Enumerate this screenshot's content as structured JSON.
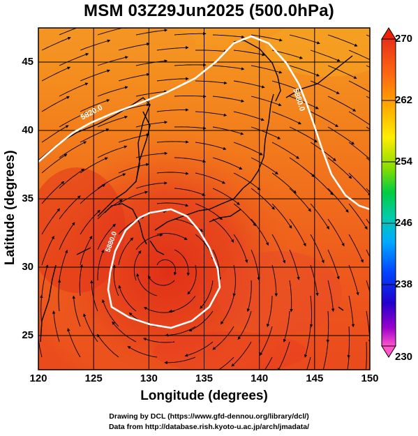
{
  "title": "MSM 03Z29Jun2025 (500.0hPa)",
  "axes": {
    "xlabel": "Longitude (degrees)",
    "ylabel": "Latitude  (degrees)",
    "xticks": [
      "120",
      "125",
      "130",
      "135",
      "140",
      "145",
      "150"
    ],
    "yticks": [
      "25",
      "30",
      "35",
      "40",
      "45"
    ],
    "xlim": [
      120,
      150
    ],
    "ylim": [
      22.5,
      47.5
    ]
  },
  "colorbar": {
    "ticks": [
      "270",
      "262",
      "254",
      "246",
      "238",
      "230"
    ],
    "range": [
      230,
      270
    ],
    "colors": [
      "#ff66cc",
      "#cc00cc",
      "#6600cc",
      "#0000cc",
      "#0055ff",
      "#00aaff",
      "#00dddd",
      "#00cc88",
      "#00cc00",
      "#88dd00",
      "#ffee00",
      "#ffaa00",
      "#ff7700",
      "#ff3300",
      "#ee2200"
    ]
  },
  "contours": [
    {
      "label": "5820.0",
      "color": "#ffffff"
    },
    {
      "label": "5880.0",
      "color": "#ffffff"
    },
    {
      "label": "5880.0",
      "color": "#ffffff"
    }
  ],
  "credits": {
    "line1": "Drawing by DCL (https://www.gfd-dennou.org/library/dcl/)",
    "line2": "Data from http://database.rish.kyoto-u.ac.jp/arch/jmadata/"
  },
  "colors": {
    "field_warm": "#e8401c",
    "field_mid": "#f26a1b",
    "field_cool": "#f59a20",
    "coast": "#000000",
    "grid": "#000000"
  }
}
